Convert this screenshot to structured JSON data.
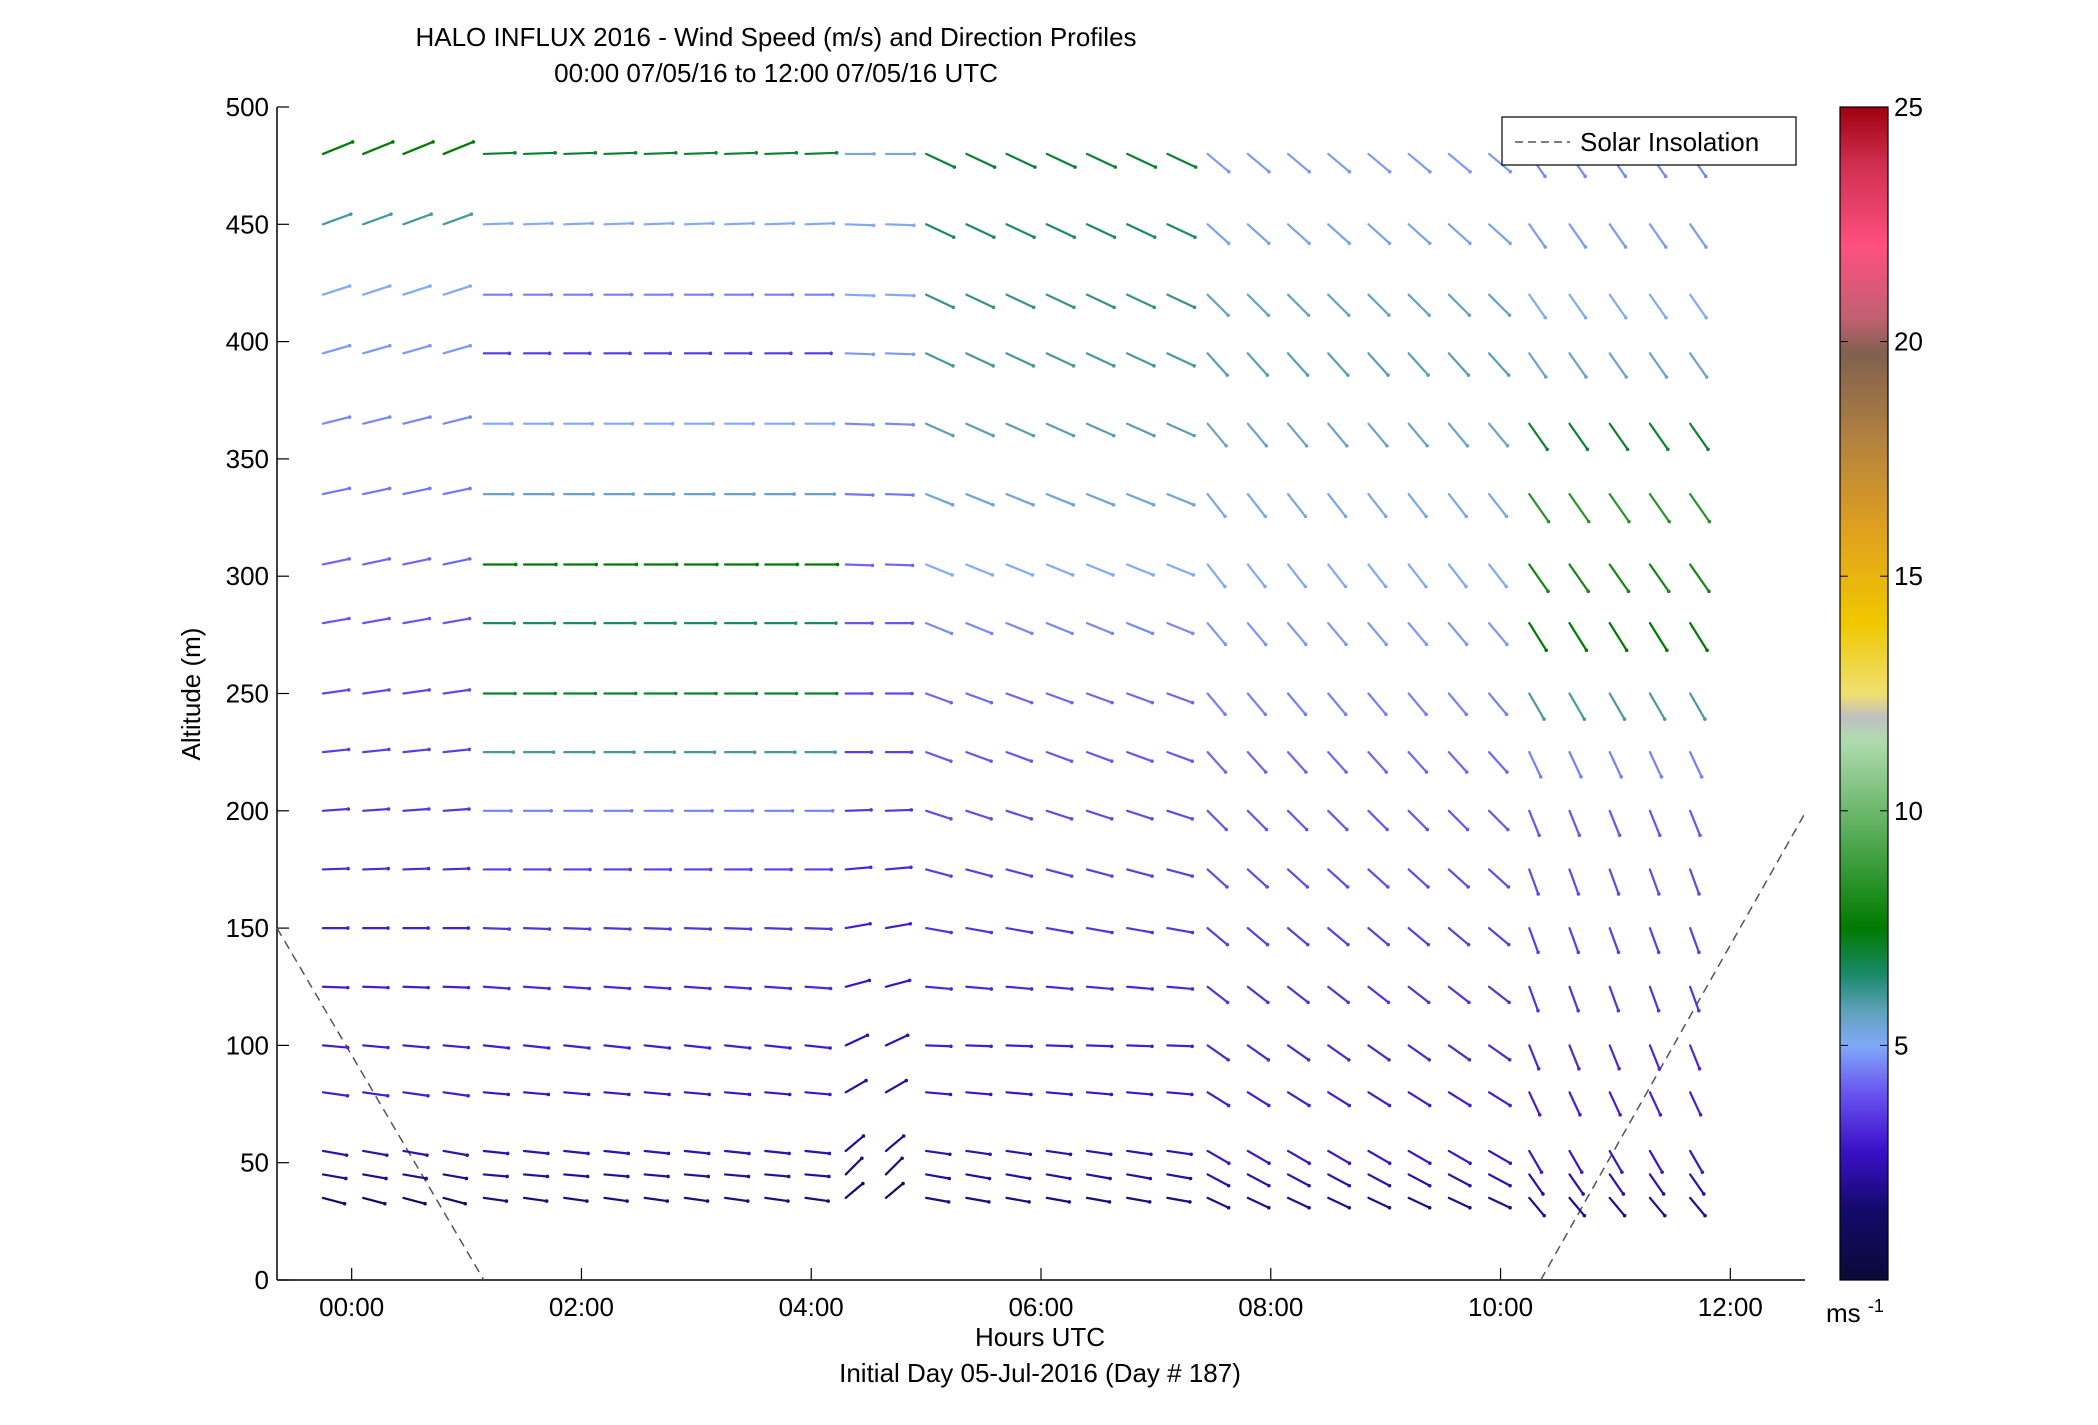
{
  "chart_data": {
    "type": "wind_barb_profile",
    "title": "HALO INFLUX 2016 - Wind Speed (m/s) and Direction Profiles",
    "subtitle": "00:00 07/05/16 to 12:00 07/05/16  UTC",
    "xlabel": "Hours UTC",
    "xlabel2": "Initial Day 05-Jul-2016 (Day # 187)",
    "ylabel": "Altitude (m)",
    "xlim": [
      -0.65,
      12.65
    ],
    "ylim": [
      0,
      500
    ],
    "xticks": [
      0,
      2,
      4,
      6,
      8,
      10,
      12
    ],
    "xtick_labels": [
      "00:00",
      "02:00",
      "04:00",
      "06:00",
      "08:00",
      "10:00",
      "12:00"
    ],
    "yticks": [
      0,
      50,
      100,
      150,
      200,
      250,
      300,
      350,
      400,
      450,
      500
    ],
    "ytick_labels": [
      "0",
      "50",
      "100",
      "150",
      "200",
      "250",
      "300",
      "350",
      "400",
      "450",
      "500"
    ],
    "colorbar": {
      "range": [
        0,
        25
      ],
      "ticks": [
        5,
        10,
        15,
        20,
        25
      ],
      "tick_labels": [
        "5",
        "10",
        "15",
        "20",
        "25"
      ],
      "unit_base": "ms",
      "unit_exp": "-1"
    },
    "legend": {
      "entries": [
        {
          "label": "Solar Insolation",
          "style": "dashed"
        }
      ],
      "placement": "top-right"
    },
    "solar_insolation": [
      {
        "points": [
          [
            -0.65,
            150
          ],
          [
            1.15,
            0
          ]
        ]
      },
      {
        "points": [
          [
            10.35,
            0
          ],
          [
            12.65,
            199
          ]
        ]
      }
    ],
    "vectors": {
      "times": [
        -0.25,
        0.1,
        0.45,
        0.8,
        1.15,
        1.5,
        1.85,
        2.2,
        2.55,
        2.9,
        3.25,
        3.6,
        3.95,
        4.3,
        4.65,
        5.0,
        5.35,
        5.7,
        6.05,
        6.4,
        6.75,
        7.1,
        7.45,
        7.8,
        8.15,
        8.5,
        8.85,
        9.2,
        9.55,
        9.9,
        10.25,
        10.6,
        10.95,
        11.3,
        11.65
      ],
      "altitudes": [
        35,
        45,
        55,
        80,
        100,
        125,
        150,
        175,
        200,
        225,
        250,
        280,
        305,
        335,
        365,
        395,
        420,
        450,
        480
      ],
      "segments": [
        {
          "t_start": -0.25,
          "t_end": 1.15,
          "dirs": [
            105,
            100,
            100,
            98,
            95,
            92,
            90,
            88,
            86,
            84,
            82,
            80,
            78,
            78,
            76,
            74,
            72,
            70,
            68
          ],
          "speeds": [
            1.5,
            2.0,
            2.5,
            3.0,
            3.0,
            3.0,
            3.0,
            3.2,
            3.4,
            3.6,
            3.8,
            4.0,
            4.2,
            4.4,
            4.6,
            4.8,
            5.0,
            6.0,
            7.5
          ]
        },
        {
          "t_start": 1.15,
          "t_end": 4.3,
          "dirs": [
            98,
            95,
            96,
            95,
            96,
            94,
            92,
            90,
            90,
            90,
            90,
            90,
            90,
            90,
            90,
            90,
            90,
            88,
            88
          ],
          "speeds": [
            1.8,
            2.2,
            2.5,
            2.8,
            3.0,
            3.2,
            3.4,
            3.6,
            4.5,
            6.0,
            7.0,
            6.5,
            7.5,
            5.5,
            5.0,
            3.5,
            4.5,
            5.0,
            7.0
          ]
        },
        {
          "t_start": 4.3,
          "t_end": 5.0,
          "dirs": [
            50,
            45,
            50,
            60,
            65,
            75,
            80,
            85,
            88,
            90,
            90,
            90,
            92,
            92,
            92,
            92,
            92,
            92,
            90
          ],
          "speeds": [
            1.5,
            1.8,
            2.0,
            2.2,
            2.5,
            2.8,
            3.0,
            3.2,
            3.4,
            3.6,
            3.8,
            4.0,
            4.2,
            4.4,
            4.6,
            4.8,
            5.0,
            5.0,
            5.2
          ]
        },
        {
          "t_start": 5.0,
          "t_end": 7.45,
          "dirs": [
            100,
            100,
            98,
            95,
            92,
            95,
            100,
            105,
            108,
            110,
            110,
            112,
            112,
            112,
            114,
            115,
            115,
            115,
            115
          ],
          "speeds": [
            1.8,
            2.2,
            2.5,
            2.8,
            3.0,
            3.2,
            3.4,
            3.6,
            3.8,
            4.0,
            4.2,
            4.6,
            5.0,
            5.4,
            5.8,
            6.0,
            6.2,
            6.5,
            7.0
          ]
        },
        {
          "t_start": 7.45,
          "t_end": 10.25,
          "dirs": [
            115,
            118,
            120,
            122,
            125,
            128,
            130,
            132,
            135,
            138,
            140,
            140,
            142,
            142,
            140,
            138,
            135,
            132,
            130
          ],
          "speeds": [
            2.0,
            2.4,
            2.8,
            3.0,
            3.2,
            3.4,
            3.6,
            3.8,
            4.0,
            4.2,
            4.5,
            4.8,
            5.0,
            5.2,
            5.5,
            5.8,
            5.6,
            5.2,
            4.8
          ]
        },
        {
          "t_start": 10.25,
          "t_end": 11.65,
          "dirs": [
            140,
            145,
            150,
            155,
            158,
            160,
            160,
            160,
            158,
            155,
            150,
            148,
            145,
            145,
            145,
            145,
            145,
            145,
            145
          ],
          "speeds": [
            2.0,
            2.4,
            2.8,
            3.0,
            3.2,
            3.4,
            3.6,
            3.8,
            4.0,
            4.5,
            6.0,
            7.5,
            8.0,
            8.5,
            7.0,
            5.5,
            5.0,
            4.8,
            4.6
          ]
        }
      ]
    }
  }
}
